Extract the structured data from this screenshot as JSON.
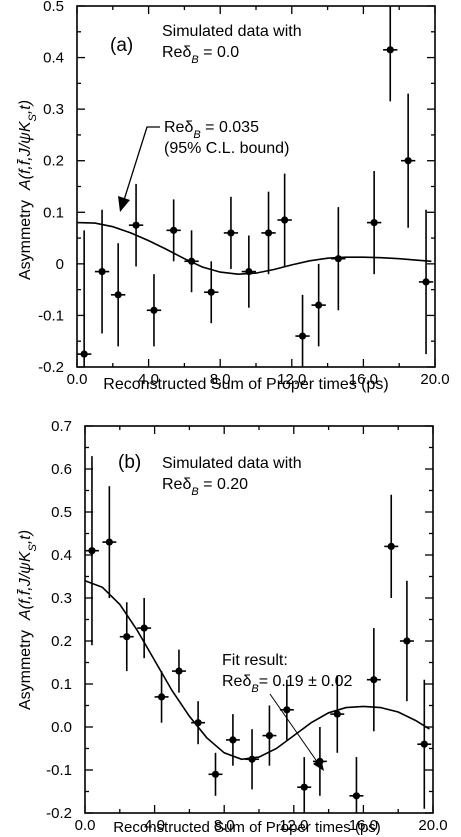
{
  "figure": {
    "ylabel_prefix": "Asymmetry",
    "ylabel_function": "A(f,f̄,J/ψK",
    "ylabel_sub": "S",
    "ylabel_suffix": ",t)"
  },
  "chart_data": [
    {
      "type": "scatter",
      "panel_label": "(a)",
      "annotation_line1": "Simulated data with",
      "annotation_line2_prefix": "Reδ",
      "annotation_line2_sub": "B",
      "annotation_line2_suffix": " = 0.0",
      "curve_label_line1_prefix": "Reδ",
      "curve_label_line1_sub": "B",
      "curve_label_line1_suffix": " = 0.035",
      "curve_label_line2": "(95% C.L. bound)",
      "xlabel": "Reconstructed Sum of Proper times (ps)",
      "xlim": [
        0,
        20
      ],
      "ylim": [
        -0.2,
        0.5
      ],
      "xticks": [
        "0.0",
        "4.0",
        "8.0",
        "12.0",
        "16.0",
        "20.0"
      ],
      "xtick_values": [
        0,
        4,
        8,
        12,
        16,
        20
      ],
      "yticks": [
        "-0.2",
        "-0.1",
        "0",
        "0.1",
        "0.2",
        "0.3",
        "0.4",
        "0.5"
      ],
      "ytick_values": [
        -0.2,
        -0.1,
        0,
        0.1,
        0.2,
        0.3,
        0.4,
        0.5
      ],
      "points": [
        {
          "x": 0.4,
          "y": -0.175,
          "yerr_lo": 0.3,
          "yerr_hi": 0.24,
          "xerr": 0.4
        },
        {
          "x": 1.4,
          "y": -0.015,
          "yerr_lo": 0.12,
          "yerr_hi": 0.12,
          "xerr": 0.4
        },
        {
          "x": 2.3,
          "y": -0.06,
          "yerr_lo": 0.1,
          "yerr_hi": 0.1,
          "xerr": 0.4
        },
        {
          "x": 3.3,
          "y": 0.075,
          "yerr_lo": 0.08,
          "yerr_hi": 0.08,
          "xerr": 0.4
        },
        {
          "x": 4.3,
          "y": -0.09,
          "yerr_lo": 0.07,
          "yerr_hi": 0.07,
          "xerr": 0.4
        },
        {
          "x": 5.4,
          "y": 0.065,
          "yerr_lo": 0.06,
          "yerr_hi": 0.06,
          "xerr": 0.4
        },
        {
          "x": 6.4,
          "y": 0.005,
          "yerr_lo": 0.06,
          "yerr_hi": 0.06,
          "xerr": 0.4
        },
        {
          "x": 7.5,
          "y": -0.055,
          "yerr_lo": 0.06,
          "yerr_hi": 0.06,
          "xerr": 0.4
        },
        {
          "x": 8.6,
          "y": 0.06,
          "yerr_lo": 0.07,
          "yerr_hi": 0.07,
          "xerr": 0.4
        },
        {
          "x": 9.6,
          "y": -0.015,
          "yerr_lo": 0.07,
          "yerr_hi": 0.07,
          "xerr": 0.4
        },
        {
          "x": 10.7,
          "y": 0.06,
          "yerr_lo": 0.08,
          "yerr_hi": 0.08,
          "xerr": 0.4
        },
        {
          "x": 11.6,
          "y": 0.085,
          "yerr_lo": 0.09,
          "yerr_hi": 0.09,
          "xerr": 0.4
        },
        {
          "x": 12.6,
          "y": -0.14,
          "yerr_lo": 0.08,
          "yerr_hi": 0.08,
          "xerr": 0.4
        },
        {
          "x": 13.5,
          "y": -0.08,
          "yerr_lo": 0.08,
          "yerr_hi": 0.08,
          "xerr": 0.4
        },
        {
          "x": 14.6,
          "y": 0.01,
          "yerr_lo": 0.1,
          "yerr_hi": 0.1,
          "xerr": 0.4
        },
        {
          "x": 16.6,
          "y": 0.08,
          "yerr_lo": 0.1,
          "yerr_hi": 0.1,
          "xerr": 0.4
        },
        {
          "x": 17.5,
          "y": 0.415,
          "yerr_lo": 0.1,
          "yerr_hi": 0.085,
          "xerr": 0.4
        },
        {
          "x": 18.5,
          "y": 0.2,
          "yerr_lo": 0.13,
          "yerr_hi": 0.13,
          "xerr": 0.4
        },
        {
          "x": 19.5,
          "y": -0.035,
          "yerr_lo": 0.14,
          "yerr_hi": 0.14,
          "xerr": 0.4
        }
      ],
      "curve": {
        "x": [
          0,
          1,
          2,
          3,
          4,
          5,
          6,
          7,
          8,
          9,
          10,
          11,
          12,
          13,
          14,
          15,
          16,
          17,
          18,
          19,
          19.8
        ],
        "y": [
          0.08,
          0.079,
          0.072,
          0.06,
          0.045,
          0.028,
          0.01,
          -0.006,
          -0.016,
          -0.02,
          -0.018,
          -0.011,
          -0.002,
          0.006,
          0.011,
          0.013,
          0.013,
          0.012,
          0.01,
          0.007,
          0.005
        ]
      }
    },
    {
      "type": "scatter",
      "panel_label": "(b)",
      "annotation_line1": "Simulated data with",
      "annotation_line2_prefix": "Reδ",
      "annotation_line2_sub": "B",
      "annotation_line2_suffix": " = 0.20",
      "curve_label_line1": "Fit result:",
      "curve_label_line2_prefix": "Reδ",
      "curve_label_line2_sub": "B",
      "curve_label_line2_suffix": "= 0.19 ± 0.02",
      "xlabel": "Reconstructed Sum of Proper times (ps)",
      "xlim": [
        0,
        20
      ],
      "ylim": [
        -0.2,
        0.7
      ],
      "xticks": [
        "0.0",
        "4.0",
        "8.0",
        "12.0",
        "16.0",
        "20.0"
      ],
      "xtick_values": [
        0,
        4,
        8,
        12,
        16,
        20
      ],
      "yticks": [
        "-0.2",
        "-0.1",
        "0.0",
        "0.1",
        "0.2",
        "0.3",
        "0.4",
        "0.5",
        "0.6",
        "0.7"
      ],
      "ytick_values": [
        -0.2,
        -0.1,
        0,
        0.1,
        0.2,
        0.3,
        0.4,
        0.5,
        0.6,
        0.7
      ],
      "points": [
        {
          "x": 0.4,
          "y": 0.41,
          "yerr_lo": 0.22,
          "yerr_hi": 0.22,
          "xerr": 0.4
        },
        {
          "x": 1.4,
          "y": 0.43,
          "yerr_lo": 0.13,
          "yerr_hi": 0.13,
          "xerr": 0.4
        },
        {
          "x": 2.4,
          "y": 0.21,
          "yerr_lo": 0.08,
          "yerr_hi": 0.08,
          "xerr": 0.4
        },
        {
          "x": 3.4,
          "y": 0.23,
          "yerr_lo": 0.07,
          "yerr_hi": 0.07,
          "xerr": 0.4
        },
        {
          "x": 4.4,
          "y": 0.07,
          "yerr_lo": 0.06,
          "yerr_hi": 0.06,
          "xerr": 0.4
        },
        {
          "x": 5.4,
          "y": 0.13,
          "yerr_lo": 0.05,
          "yerr_hi": 0.05,
          "xerr": 0.4
        },
        {
          "x": 6.5,
          "y": 0.01,
          "yerr_lo": 0.05,
          "yerr_hi": 0.05,
          "xerr": 0.4
        },
        {
          "x": 7.5,
          "y": -0.11,
          "yerr_lo": 0.05,
          "yerr_hi": 0.05,
          "xerr": 0.4
        },
        {
          "x": 8.5,
          "y": -0.03,
          "yerr_lo": 0.06,
          "yerr_hi": 0.06,
          "xerr": 0.4
        },
        {
          "x": 9.6,
          "y": -0.075,
          "yerr_lo": 0.07,
          "yerr_hi": 0.07,
          "xerr": 0.4
        },
        {
          "x": 10.6,
          "y": -0.02,
          "yerr_lo": 0.07,
          "yerr_hi": 0.07,
          "xerr": 0.4
        },
        {
          "x": 11.6,
          "y": 0.04,
          "yerr_lo": 0.07,
          "yerr_hi": 0.07,
          "xerr": 0.4
        },
        {
          "x": 12.6,
          "y": -0.14,
          "yerr_lo": 0.07,
          "yerr_hi": 0.07,
          "xerr": 0.4
        },
        {
          "x": 13.5,
          "y": -0.08,
          "yerr_lo": 0.08,
          "yerr_hi": 0.08,
          "xerr": 0.4
        },
        {
          "x": 14.5,
          "y": 0.03,
          "yerr_lo": 0.09,
          "yerr_hi": 0.09,
          "xerr": 0.4
        },
        {
          "x": 15.6,
          "y": -0.16,
          "yerr_lo": 0.09,
          "yerr_hi": 0.09,
          "xerr": 0.4
        },
        {
          "x": 16.6,
          "y": 0.11,
          "yerr_lo": 0.12,
          "yerr_hi": 0.12,
          "xerr": 0.4
        },
        {
          "x": 17.6,
          "y": 0.42,
          "yerr_lo": 0.12,
          "yerr_hi": 0.12,
          "xerr": 0.4
        },
        {
          "x": 18.5,
          "y": 0.2,
          "yerr_lo": 0.14,
          "yerr_hi": 0.14,
          "xerr": 0.4
        },
        {
          "x": 19.5,
          "y": -0.04,
          "yerr_lo": 0.15,
          "yerr_hi": 0.15,
          "xerr": 0.4
        }
      ],
      "curve": {
        "x": [
          0,
          1,
          2,
          3,
          4,
          5,
          6,
          7,
          8,
          9,
          10,
          11,
          12,
          13,
          14,
          15,
          16,
          17,
          18,
          19,
          19.8
        ],
        "y": [
          0.34,
          0.325,
          0.285,
          0.225,
          0.155,
          0.085,
          0.025,
          -0.025,
          -0.06,
          -0.075,
          -0.07,
          -0.05,
          -0.02,
          0.01,
          0.033,
          0.045,
          0.048,
          0.045,
          0.035,
          0.015,
          -0.005
        ]
      }
    }
  ]
}
